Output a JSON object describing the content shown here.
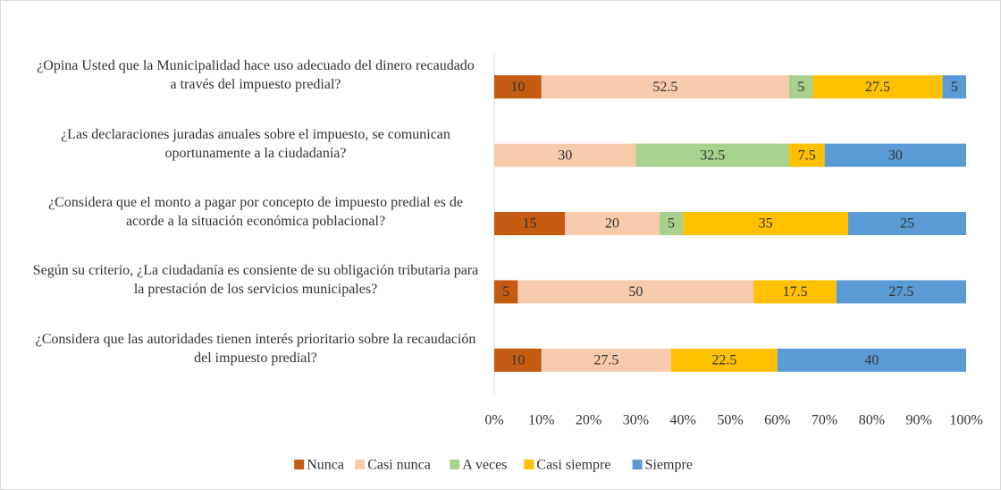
{
  "chart_data": {
    "type": "stacked-barh",
    "categories": [
      "¿Opina Usted que la Municipalidad hace uso adecuado del dinero recaudado a través del impuesto predial?",
      "¿Las declaraciones juradas anuales sobre el impuesto, se comunican oportunamente a la ciudadanía?",
      "¿Considera que el monto a pagar por concepto de impuesto predial es de acorde a la situación económica poblacional?",
      "Según su criterio, ¿La ciudadanía es consiente de su obligación tributaria para la prestación de los servicios municipales?",
      "¿Considera que las autoridades tienen interés prioritario sobre la recaudación del impuesto predial?"
    ],
    "series": [
      {
        "name": "Nunca",
        "color": "#c55a11",
        "values": [
          10,
          null,
          15,
          5,
          10
        ]
      },
      {
        "name": "Casi nunca",
        "color": "#f8cbad",
        "values": [
          52.5,
          30,
          20,
          50,
          27.5
        ]
      },
      {
        "name": "A veces",
        "color": "#a9d18e",
        "values": [
          5,
          32.5,
          5,
          null,
          null
        ]
      },
      {
        "name": "Casi siempre",
        "color": "#ffc000",
        "values": [
          27.5,
          7.5,
          35,
          17.5,
          22.5
        ]
      },
      {
        "name": "Siempre",
        "color": "#5b9bd5",
        "values": [
          5,
          30,
          25,
          27.5,
          40
        ]
      }
    ],
    "xlim": [
      0,
      100
    ],
    "xticks": [
      {
        "value": 0,
        "label": "0%"
      },
      {
        "value": 10,
        "label": "10%"
      },
      {
        "value": 20,
        "label": "20%"
      },
      {
        "value": 30,
        "label": "30%"
      },
      {
        "value": 40,
        "label": "40%"
      },
      {
        "value": 50,
        "label": "50%"
      },
      {
        "value": 60,
        "label": "60%"
      },
      {
        "value": 70,
        "label": "70%"
      },
      {
        "value": 80,
        "label": "80%"
      },
      {
        "value": 90,
        "label": "90%"
      },
      {
        "value": 100,
        "label": "100%"
      }
    ],
    "legend": "bottom"
  }
}
